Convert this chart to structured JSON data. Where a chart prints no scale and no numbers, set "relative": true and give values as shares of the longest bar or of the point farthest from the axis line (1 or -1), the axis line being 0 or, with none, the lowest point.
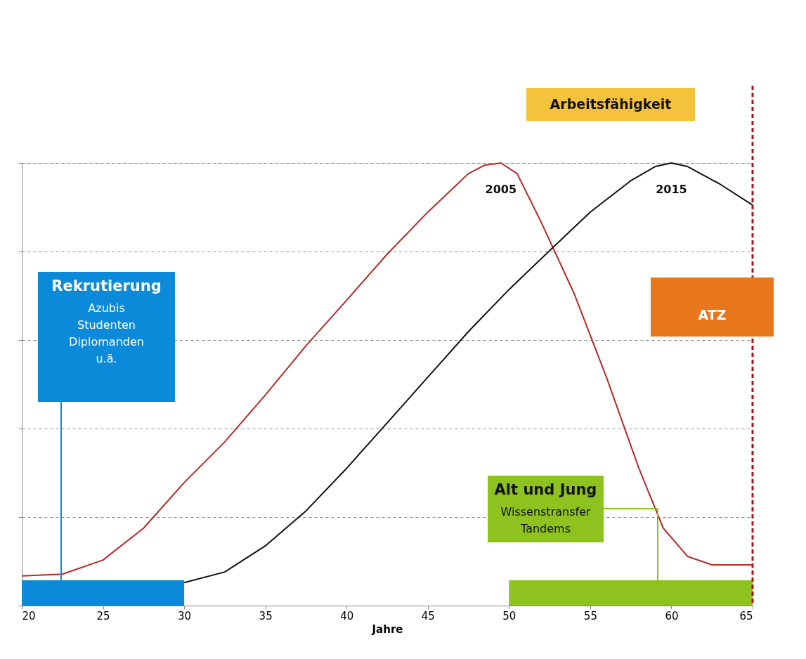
{
  "chart_data": {
    "type": "line",
    "relative": true,
    "xlabel": "Jahre",
    "xlim": [
      20,
      65
    ],
    "xticks": [
      20,
      25,
      30,
      35,
      40,
      45,
      50,
      55,
      60,
      65
    ],
    "grid": "y",
    "legend": false,
    "line_style": "solid",
    "marker": "none",
    "series": [
      {
        "name": "2005",
        "color": "#b52a25",
        "x": [
          20,
          22.5,
          25,
          27.5,
          30,
          32.5,
          35,
          37.5,
          40,
          42.5,
          45,
          47.5,
          48.5,
          49.5,
          50.5,
          52,
          54,
          56,
          58,
          59.5,
          61,
          62.5,
          65
        ],
        "values": [
          0.067,
          0.071,
          0.103,
          0.175,
          0.278,
          0.37,
          0.476,
          0.587,
          0.69,
          0.794,
          0.889,
          0.976,
          0.995,
          1,
          0.976,
          0.865,
          0.706,
          0.516,
          0.31,
          0.175,
          0.111,
          0.092,
          0.092
        ]
      },
      {
        "name": "2015",
        "color": "#111111",
        "x": [
          30,
          32.5,
          35,
          37.5,
          40,
          42.5,
          45,
          47.5,
          50,
          52.5,
          55,
          57.5,
          59,
          60,
          61,
          63,
          65
        ],
        "values": [
          0.052,
          0.076,
          0.135,
          0.214,
          0.31,
          0.413,
          0.516,
          0.619,
          0.714,
          0.802,
          0.889,
          0.96,
          0.992,
          1,
          0.992,
          0.952,
          0.905
        ]
      }
    ],
    "bands": [
      {
        "axis": "x",
        "from": 20,
        "to": 30,
        "color": "#0a8ad8"
      },
      {
        "axis": "x",
        "from": 50,
        "to": 65,
        "color": "#8dc21f"
      }
    ],
    "ref_lines": [
      {
        "axis": "x",
        "value": 65,
        "color": "#a01818",
        "line_style": "dashed"
      }
    ],
    "annotations": [
      "Arbeitsfähigkeit",
      "ATZ",
      "Rekrutierung\nAzubis\nStudenten\nDiplomanden\nu.ä.",
      "Alt und Jung\nWissenstransfer\nTandems"
    ]
  }
}
